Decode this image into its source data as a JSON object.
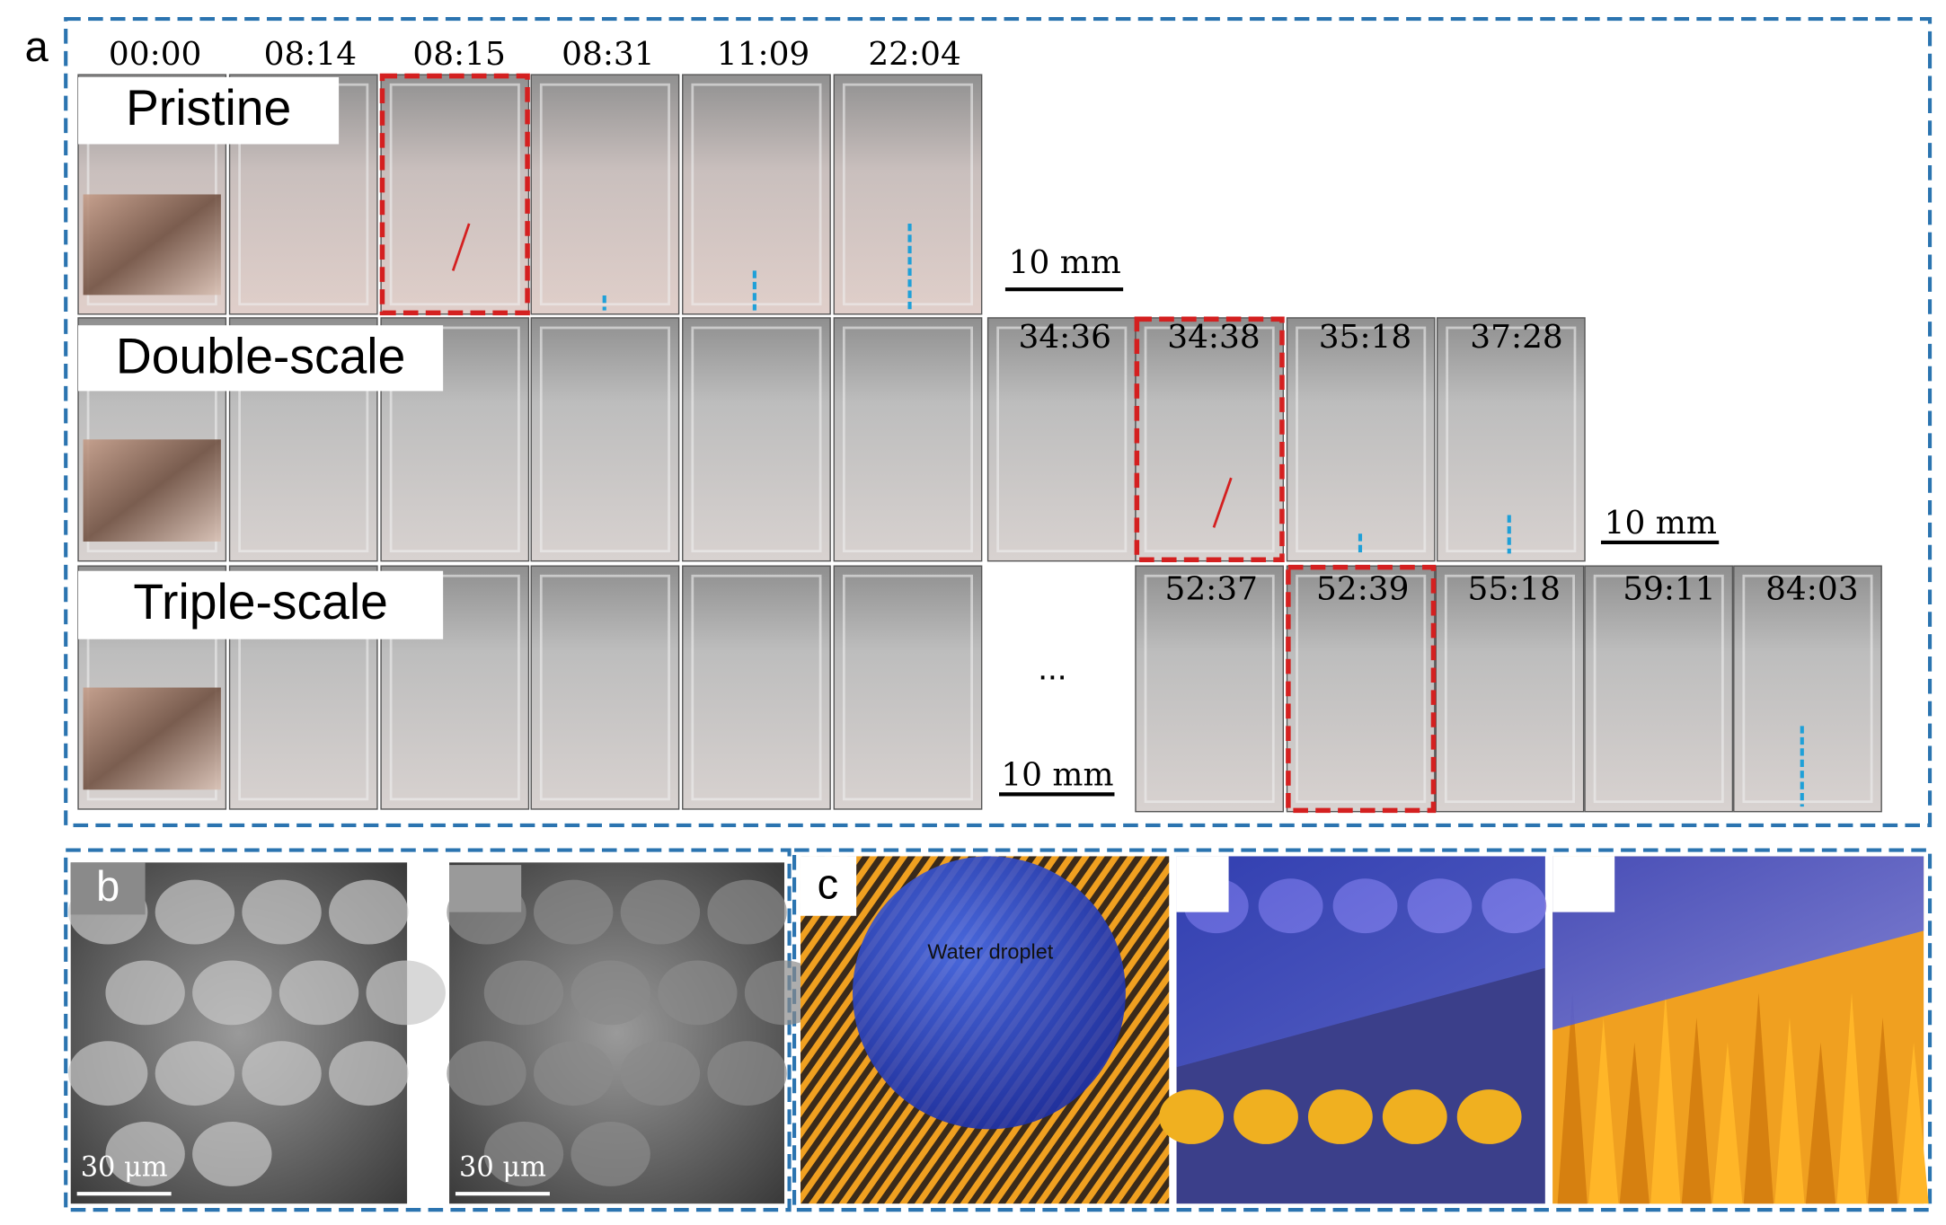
{
  "panel_a": {
    "label": "a",
    "time_labels": [
      "00:00",
      "08:14",
      "08:15",
      "08:31",
      "11:09",
      "22:04"
    ],
    "rows": [
      {
        "name": "Pristine",
        "extra_times": []
      },
      {
        "name": "Double-scale",
        "extra_times": [
          "34:36",
          "34:38",
          "35:18",
          "37:28"
        ]
      },
      {
        "name": "Triple-scale",
        "extra_times": [
          "52:37",
          "52:39",
          "55:18",
          "59:11",
          "84:03"
        ]
      }
    ],
    "scale_bars": [
      "10 mm",
      "10 mm",
      "10 mm"
    ],
    "ellipsis": "..."
  },
  "panel_b": {
    "label": "b",
    "scale_bars": [
      "30 μm",
      "30 μm"
    ]
  },
  "panel_c": {
    "label": "c",
    "annotation": "Water droplet"
  }
}
